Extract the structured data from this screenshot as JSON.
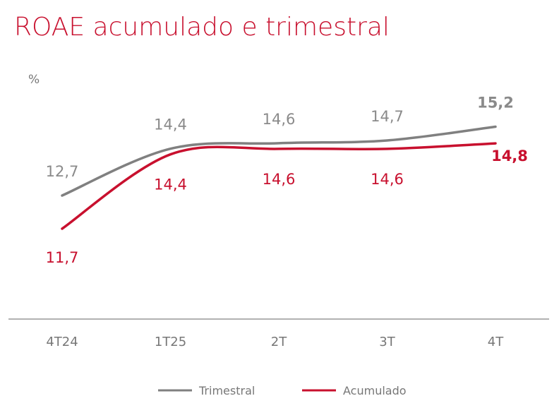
{
  "chart_data": {
    "type": "line",
    "title": "ROAE acumulado e trimestral",
    "ylabel": "%",
    "xlabel": "",
    "categories": [
      "4T24",
      "1T25",
      "2T",
      "3T",
      "4T"
    ],
    "series": [
      {
        "name": "Trimestral",
        "values": [
          12.7,
          14.4,
          14.6,
          14.7,
          15.2
        ],
        "labels": [
          "12,7",
          "14,4",
          "14,6",
          "14,7",
          "15,2"
        ],
        "color": "#808080"
      },
      {
        "name": "Acumulado",
        "values": [
          11.7,
          14.4,
          14.6,
          14.6,
          14.8
        ],
        "labels": [
          "11,7",
          "14,4",
          "14,6",
          "14,6",
          "14,8"
        ],
        "color": "#c8102e"
      }
    ],
    "grid": false,
    "legend": "bottom-center"
  }
}
